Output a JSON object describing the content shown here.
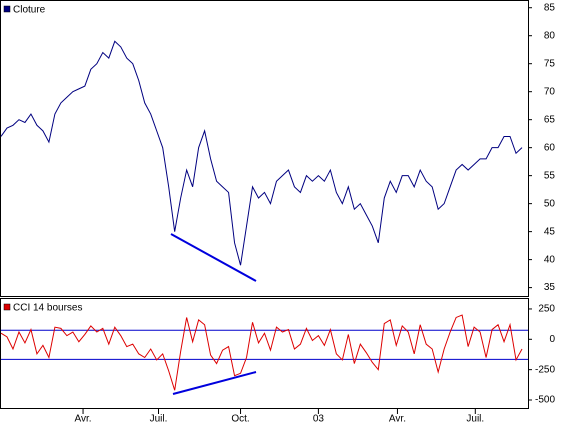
{
  "chart_data": [
    {
      "type": "line",
      "series": [
        {
          "name": "Cloture",
          "color": "#000080",
          "values": [
            62,
            63.5,
            64,
            65,
            64.5,
            66,
            64,
            63,
            61,
            66,
            68,
            69,
            70,
            70.5,
            71,
            74,
            75,
            77,
            76,
            79,
            78,
            76,
            75,
            72,
            68,
            66,
            63,
            60,
            53,
            45,
            51,
            56,
            53,
            60,
            63,
            58,
            54,
            53,
            52,
            43,
            39,
            46,
            53,
            51,
            52,
            50,
            54,
            55,
            56,
            53,
            52,
            55,
            54,
            55,
            54,
            56,
            52,
            50,
            53,
            49,
            50,
            48,
            46,
            43,
            51,
            54,
            52,
            55,
            55,
            53,
            56,
            54,
            53,
            49,
            50,
            53,
            56,
            57,
            56,
            57,
            58,
            58,
            60,
            60,
            62,
            62,
            59,
            60
          ]
        }
      ],
      "xlim": [
        0,
        88
      ],
      "ylim": [
        33.5,
        86.2
      ],
      "yticks": [
        35,
        40,
        45,
        50,
        55,
        60,
        65,
        70,
        75,
        80,
        85
      ]
    },
    {
      "type": "line",
      "series": [
        {
          "name": "CCI 14 bourses",
          "color": "#dd0000",
          "values": [
            50,
            20,
            -80,
            60,
            -30,
            80,
            -120,
            -50,
            -150,
            100,
            90,
            30,
            60,
            -20,
            40,
            110,
            60,
            90,
            -40,
            100,
            30,
            -60,
            -40,
            -120,
            -150,
            -80,
            -170,
            -120,
            -260,
            -420,
            -100,
            180,
            -20,
            160,
            120,
            -130,
            -200,
            -90,
            -60,
            -300,
            -280,
            -150,
            140,
            -30,
            50,
            -90,
            100,
            60,
            80,
            -80,
            -40,
            90,
            -10,
            30,
            -50,
            80,
            -120,
            -170,
            40,
            -200,
            -40,
            -110,
            -190,
            -250,
            130,
            160,
            -50,
            110,
            60,
            -120,
            120,
            -40,
            -80,
            -270,
            -80,
            60,
            180,
            200,
            -60,
            100,
            60,
            -150,
            80,
            120,
            -20,
            120,
            -170,
            -80
          ]
        }
      ],
      "hlines": [
        75,
        -165
      ],
      "hline_color": "#0000cc",
      "xlim": [
        0,
        88
      ],
      "ylim": [
        -566,
        332
      ],
      "yticks": [
        250,
        0,
        -250,
        -500
      ],
      "xticks": [
        {
          "value": 13.7,
          "label": "Avr."
        },
        {
          "value": 26.3,
          "label": "Juil."
        },
        {
          "value": 40,
          "label": "Oct."
        },
        {
          "value": 53,
          "label": "03"
        },
        {
          "value": 66.2,
          "label": "Avr."
        },
        {
          "value": 79.2,
          "label": "Juil."
        }
      ]
    }
  ]
}
